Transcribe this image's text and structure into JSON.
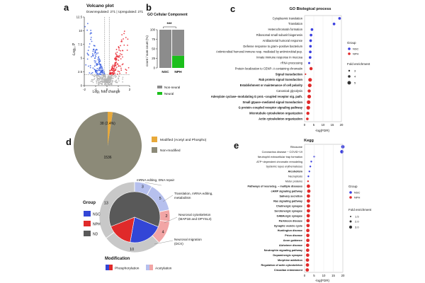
{
  "panel_letters": [
    "a",
    "b",
    "c",
    "d",
    "e"
  ],
  "chart_data": [
    {
      "panel": "a",
      "type": "scatter",
      "title": "Volcano plot",
      "subtitle": "Downregulated: 271 | Upregulated: 271",
      "xlabel": "Log₂ fold change",
      "ylabel": "-Log₁₀ P",
      "xlim": [
        -2,
        2
      ],
      "ylim": [
        0,
        12.5
      ],
      "xticks": [
        -2,
        -1,
        0,
        1,
        2
      ],
      "yticks": [
        0,
        2.5,
        5,
        7.5,
        10,
        12.5
      ],
      "threshold_y": 2,
      "threshold_x": [
        -0.2,
        0.2
      ],
      "colors": {
        "down": "#3b5fe0",
        "up": "#e8202a",
        "ns": "#b5b5b5"
      }
    },
    {
      "panel": "b",
      "type": "bar",
      "title": "GO Cellular Component",
      "categories": [
        "NSC",
        "NPH"
      ],
      "ylabel": "count / sum count (%)",
      "yticks": [
        0,
        25,
        50,
        75,
        100
      ],
      "ylim": [
        0,
        100
      ],
      "series": [
        {
          "name": "Non-neural",
          "values": [
            100,
            68
          ],
          "color": "#8c8c8c"
        },
        {
          "name": "Neural",
          "values": [
            0,
            32
          ],
          "color": "#1bbf1b"
        }
      ],
      "significance": "***"
    },
    {
      "panel": "c",
      "type": "scatter",
      "title": "GO Biological process",
      "xlabel": "-log(FDR)",
      "xlim": [
        0,
        20
      ],
      "xticks": [
        0,
        5,
        10,
        15,
        20
      ],
      "terms": [
        {
          "label": "Cytoplasmic translation",
          "group": "NSC",
          "x": 19,
          "size": 3,
          "bold": false
        },
        {
          "label": "Translation",
          "group": "NSC",
          "x": 16,
          "size": 3,
          "bold": false
        },
        {
          "label": "Heterochromatin formation",
          "group": "NSC",
          "x": 4,
          "size": 3,
          "bold": false
        },
        {
          "label": "Ribosomal small subunit biogenesis",
          "group": "NSC",
          "x": 3.5,
          "size": 3,
          "bold": false
        },
        {
          "label": "Antibacterial humoral response",
          "group": "NSC",
          "x": 3.3,
          "size": 3,
          "bold": false
        },
        {
          "label": "Defense response to gram−positive bacterium",
          "group": "NSC",
          "x": 3.2,
          "size": 3,
          "bold": false
        },
        {
          "label": "Antimicrobial humoral immune resp. mediated by antimicrobial pep.",
          "group": "NSC",
          "x": 3.1,
          "size": 3,
          "bold": false
        },
        {
          "label": "Innate immune response in mucosa",
          "group": "NSC",
          "x": 3,
          "size": 3,
          "bold": false
        },
        {
          "label": "rRNA processing",
          "group": "NSC",
          "x": 2.5,
          "size": 2,
          "bold": false
        },
        {
          "label": "Protein localization to CENP−A containing chromatin",
          "group": "NPH",
          "x": 3.5,
          "size": 4,
          "bold": false
        },
        {
          "label": "Signal transduction",
          "group": "NPH",
          "x": 0.5,
          "size": 1,
          "bold": true
        },
        {
          "label": "Rab protein signal transduction",
          "group": "NPH",
          "x": 3,
          "size": 5,
          "bold": true
        },
        {
          "label": "Establishment or maintenance of cell polarity",
          "group": "NPH",
          "x": 2.8,
          "size": 5,
          "bold": true
        },
        {
          "label": "Canonical glycolysis",
          "group": "NPH",
          "x": 2.5,
          "size": 4,
          "bold": false
        },
        {
          "label": "Adenylate cyclase−modulating G prot.−coupled receptor sig. path.",
          "group": "NPH",
          "x": 2.5,
          "size": 5,
          "bold": true
        },
        {
          "label": "Small gtpase−mediated signal transduction",
          "group": "NPH",
          "x": 2.2,
          "size": 5,
          "bold": true
        },
        {
          "label": "G protein−coupled receptor signaling pathway",
          "group": "NPH",
          "x": 2,
          "size": 5,
          "bold": true
        },
        {
          "label": "Microtubule cytoskeleton organization",
          "group": "NPH",
          "x": 1.8,
          "size": 4,
          "bold": true
        },
        {
          "label": "Actin cytoskeleton organization",
          "group": "NPH",
          "x": 1.5,
          "size": 3,
          "bold": true
        }
      ],
      "legend": {
        "group_title": "Group",
        "groups": [
          {
            "name": "NSC",
            "color": "#3b3fe0"
          },
          {
            "name": "NPH",
            "color": "#e02a2a"
          }
        ],
        "size_title": "Fold enrichment",
        "sizes": [
          "3",
          "4",
          "5"
        ]
      }
    },
    {
      "panel": "d",
      "type": "pie",
      "slices": [
        {
          "label": "Modified (Acetyl and Phospho)",
          "value": 38,
          "text": "38 (2.4%)",
          "color": "#e8a93a"
        },
        {
          "label": "Non-modified",
          "value": 1536,
          "text": "1536",
          "color": "#8c8a78"
        }
      ]
    },
    {
      "panel": "d2",
      "type": "pie",
      "nested": true,
      "outer_ring": [
        {
          "label": "ND",
          "value": 13,
          "color": "#c8c8c8"
        },
        {
          "label": "NSC",
          "value": 3,
          "color": "#b6c0ee"
        },
        {
          "label": "NSC",
          "value": 5,
          "color": "#b6c0ee"
        },
        {
          "label": "NPH",
          "value": 2,
          "color": "#f2a5a5"
        },
        {
          "label": "NPH",
          "value": 4,
          "color": "#f2a5a5"
        },
        {
          "label": "ND",
          "value": 10,
          "color": "#c8c8c8"
        }
      ],
      "inner_disc": [
        {
          "label": "ND",
          "value": 23,
          "color": "#595959"
        },
        {
          "label": "NSC",
          "value": 8,
          "color": "#3346d6"
        },
        {
          "label": "NPH",
          "value": 6,
          "color": "#e02a2a"
        }
      ],
      "annotations": [
        "mRNA editing, DNA repair",
        "Translation, mRNA editing, metabolism",
        "Neuronal cytoskeleton (MAP1B and DPYSL3)",
        "Neuronal migration (DCX)"
      ],
      "legend": {
        "group_title": "Group",
        "groups": [
          {
            "name": "NSC",
            "color": "#3346d6"
          },
          {
            "name": "NPH",
            "color": "#e02a2a"
          },
          {
            "name": "ND",
            "color": "#595959"
          }
        ],
        "modification_title": "Modification",
        "modifications": [
          {
            "name": "Phosphorylation",
            "colors": [
              "#3346d6",
              "#e02a2a"
            ]
          },
          {
            "name": "Acetylation",
            "colors": [
              "#b6c0ee",
              "#f2a5a5"
            ]
          }
        ]
      }
    },
    {
      "panel": "e",
      "type": "scatter",
      "title": "Kegg",
      "xlabel": "-log(FDR)",
      "xlim": [
        0,
        20
      ],
      "xticks": [
        0,
        5,
        10,
        15,
        20
      ],
      "terms": [
        {
          "label": "Ribosome",
          "group": "NSC",
          "x": 20,
          "size": 3,
          "bold": false
        },
        {
          "label": "Coronavirus disease − COVID−19",
          "group": "NSC",
          "x": 19.5,
          "size": 3,
          "bold": false
        },
        {
          "label": "Neutrophil extracellular trap formation",
          "group": "NSC",
          "x": 5,
          "size": 2,
          "bold": false
        },
        {
          "label": "ATP−dependent chromatin remodeling",
          "group": "NSC",
          "x": 3.5,
          "size": 2,
          "bold": false
        },
        {
          "label": "Systemic lupus erythematosus",
          "group": "NSC",
          "x": 3,
          "size": 2,
          "bold": false
        },
        {
          "label": "Alcoholism",
          "group": "NSC",
          "x": 2.5,
          "size": 2,
          "bold": true
        },
        {
          "label": "Necroptosis",
          "group": "NSC",
          "x": 2,
          "size": 2,
          "bold": false
        },
        {
          "label": "Motor proteins",
          "group": "NPH",
          "x": 1.8,
          "size": 2,
          "bold": false
        },
        {
          "label": "Pathways of neurodeg. − multiple diseases",
          "group": "NPH",
          "x": 2,
          "size": 3,
          "bold": true
        },
        {
          "label": "cAMP signaling pathway",
          "group": "NPH",
          "x": 2.2,
          "size": 3,
          "bold": true
        },
        {
          "label": "Salivary secretion",
          "group": "NPH",
          "x": 2,
          "size": 3,
          "bold": true
        },
        {
          "label": "Ras signaling pathway",
          "group": "NPH",
          "x": 2,
          "size": 3,
          "bold": true
        },
        {
          "label": "Cholinergic synapse",
          "group": "NPH",
          "x": 2,
          "size": 3,
          "bold": true
        },
        {
          "label": "Serotonergic synapse",
          "group": "NPH",
          "x": 2,
          "size": 3,
          "bold": true
        },
        {
          "label": "GABAergic synapse",
          "group": "NPH",
          "x": 1.9,
          "size": 3,
          "bold": true
        },
        {
          "label": "Parkinson disease",
          "group": "NPH",
          "x": 1.8,
          "size": 3,
          "bold": true
        },
        {
          "label": "Synaptic vesicle cycle",
          "group": "NPH",
          "x": 1.8,
          "size": 3,
          "bold": true
        },
        {
          "label": "Huntington disease",
          "group": "NPH",
          "x": 1.7,
          "size": 3,
          "bold": true
        },
        {
          "label": "Prion disease",
          "group": "NPH",
          "x": 1.7,
          "size": 3,
          "bold": true
        },
        {
          "label": "Axon guidance",
          "group": "NPH",
          "x": 1.7,
          "size": 3,
          "bold": true
        },
        {
          "label": "Alzheimer disease",
          "group": "NPH",
          "x": 1.6,
          "size": 3,
          "bold": true
        },
        {
          "label": "Neutrophin signaling pathway",
          "group": "NPH",
          "x": 1.6,
          "size": 3,
          "bold": true
        },
        {
          "label": "Dopaminergic synapse",
          "group": "NPH",
          "x": 1.6,
          "size": 3,
          "bold": true
        },
        {
          "label": "Morphine addiction",
          "group": "NPH",
          "x": 1.5,
          "size": 3,
          "bold": true
        },
        {
          "label": "Regulation of actin cytoskeleton",
          "group": "NPH",
          "x": 1.5,
          "size": 3,
          "bold": true
        },
        {
          "label": "Circadian entrainment",
          "group": "NPH",
          "x": 1.4,
          "size": 3,
          "bold": true
        }
      ],
      "legend": {
        "group_title": "Group",
        "groups": [
          {
            "name": "NSC",
            "color": "#3b3fe0"
          },
          {
            "name": "NPH",
            "color": "#e02a2a"
          }
        ],
        "size_title": "Fold enrichment",
        "sizes": [
          "1.5",
          "2.0",
          "3.0"
        ]
      }
    }
  ]
}
